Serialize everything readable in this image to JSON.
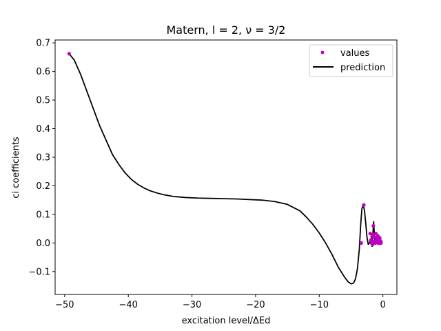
{
  "chart_data": {
    "type": "line",
    "title": "Matern, l = 2, ν = 3/2",
    "xlabel": "excitation level/ΔEd",
    "ylabel": "ci coefficients",
    "xlim": [
      -51.5,
      2.2
    ],
    "ylim": [
      -0.18,
      0.71
    ],
    "xticks": [
      -50,
      -40,
      -30,
      -20,
      -10,
      0
    ],
    "xtick_labels": [
      "−50",
      "−40",
      "−30",
      "−20",
      "−10",
      "0"
    ],
    "yticks": [
      -0.1,
      0.0,
      0.1,
      0.2,
      0.3,
      0.4,
      0.5,
      0.6,
      0.7
    ],
    "ytick_labels": [
      "−0.1",
      "0.0",
      "0.1",
      "0.2",
      "0.3",
      "0.4",
      "0.5",
      "0.6",
      "0.7"
    ],
    "grid": false,
    "legend_position": "top-right",
    "series": [
      {
        "name": "values",
        "kind": "scatter",
        "color": "#bf00bf",
        "x": [
          -49.3,
          -3.4,
          -3.0,
          -2.0,
          -1.9,
          -1.8,
          -1.7,
          -1.6,
          -1.5,
          -1.5,
          -1.4,
          -1.3,
          -1.2,
          -1.1,
          -1.0,
          -0.9,
          -0.8,
          -0.7,
          -0.6,
          -0.5,
          -0.4,
          -0.3,
          -1.6,
          -1.0,
          -0.8,
          -0.6,
          -0.5,
          -0.4,
          -0.3
        ],
        "y": [
          0.662,
          0.0,
          0.133,
          0.033,
          0.01,
          0.0,
          0.022,
          0.03,
          0.06,
          0.0,
          0.005,
          0.02,
          0.0,
          0.033,
          0.01,
          0.005,
          0.0,
          0.02,
          0.01,
          0.018,
          0.0,
          0.005,
          -0.005,
          0.02,
          0.025,
          0.0,
          0.012,
          0.002,
          0.0
        ]
      },
      {
        "name": "prediction",
        "kind": "line",
        "color": "#000000",
        "x": [
          -49.3,
          -48.5,
          -47.5,
          -46.5,
          -45.5,
          -44.5,
          -43.5,
          -42.5,
          -41.5,
          -40.5,
          -39.5,
          -38.5,
          -37.5,
          -36.5,
          -35.5,
          -34.5,
          -33,
          -31,
          -29,
          -27,
          -25,
          -23,
          -21,
          -19,
          -17,
          -15,
          -13,
          -12,
          -11,
          -10,
          -9,
          -8,
          -7,
          -6,
          -5.5,
          -5,
          -4.6,
          -4.3,
          -4.0,
          -3.7,
          -3.5,
          -3.3,
          -3.1,
          -2.9,
          -2.7,
          -2.5,
          -2.3,
          -2.1,
          -1.9,
          -1.7,
          -1.55,
          -1.45,
          -1.35,
          -1.25,
          -1.1,
          -0.9,
          -0.6,
          -0.3
        ],
        "y": [
          0.662,
          0.64,
          0.59,
          0.53,
          0.47,
          0.41,
          0.36,
          0.31,
          0.275,
          0.245,
          0.222,
          0.205,
          0.192,
          0.182,
          0.175,
          0.169,
          0.163,
          0.159,
          0.157,
          0.156,
          0.155,
          0.154,
          0.152,
          0.15,
          0.145,
          0.135,
          0.112,
          0.09,
          0.065,
          0.035,
          0.0,
          -0.04,
          -0.085,
          -0.12,
          -0.135,
          -0.143,
          -0.14,
          -0.125,
          -0.09,
          -0.02,
          0.06,
          0.12,
          0.133,
          0.115,
          0.07,
          0.02,
          -0.005,
          0.0,
          0.015,
          -0.012,
          0.04,
          0.075,
          0.03,
          0.005,
          0.008,
          0.004,
          0.002,
          0.0
        ]
      }
    ]
  }
}
